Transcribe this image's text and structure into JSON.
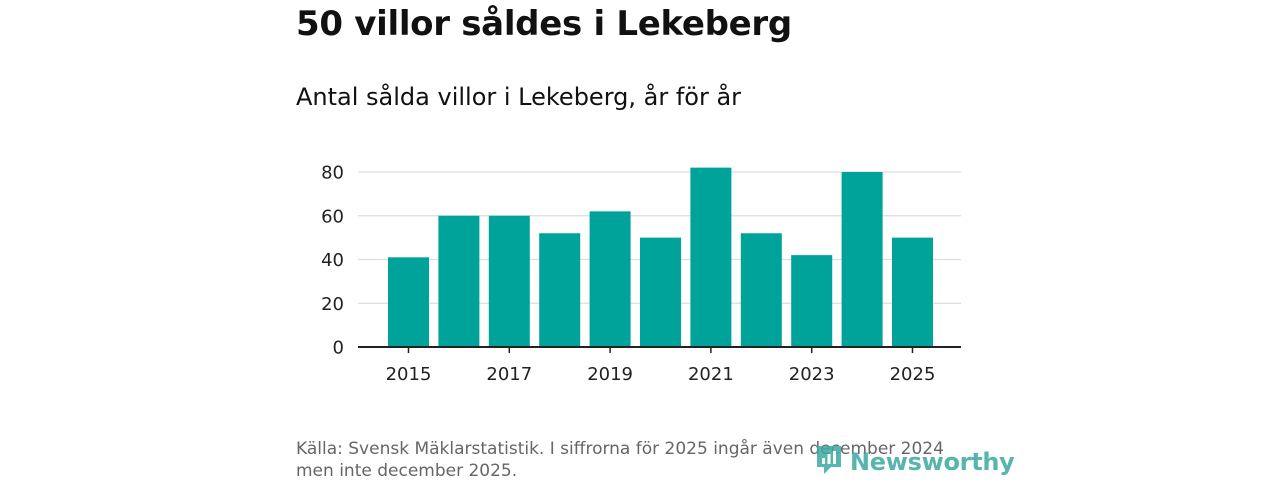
{
  "title": "50 villor såldes i Lekeberg",
  "subtitle": "Antal sålda villor i Lekeberg, år för år",
  "chart_data": {
    "type": "bar",
    "categories": [
      "2015",
      "2016",
      "2017",
      "2018",
      "2019",
      "2020",
      "2021",
      "2022",
      "2023",
      "2024",
      "2025"
    ],
    "values": [
      41,
      60,
      60,
      52,
      62,
      50,
      82,
      52,
      42,
      80,
      50
    ],
    "x_tick_labels": [
      "2015",
      "2017",
      "2019",
      "2021",
      "2023",
      "2025"
    ],
    "y_ticks": [
      0,
      20,
      40,
      60,
      80
    ],
    "ylim": [
      0,
      85
    ],
    "bar_color": "#00a39a",
    "grid": true,
    "xlabel": "",
    "ylabel": ""
  },
  "footer": {
    "source_line1": "Källa: Svensk Mäklarstatistik. I siffrorna för 2025 ingår även december 2024",
    "source_line2": "men inte december 2025."
  },
  "brand": {
    "name": "Newsworthy",
    "icon": "newsworthy-logo-icon",
    "color": "#3aa99f"
  }
}
